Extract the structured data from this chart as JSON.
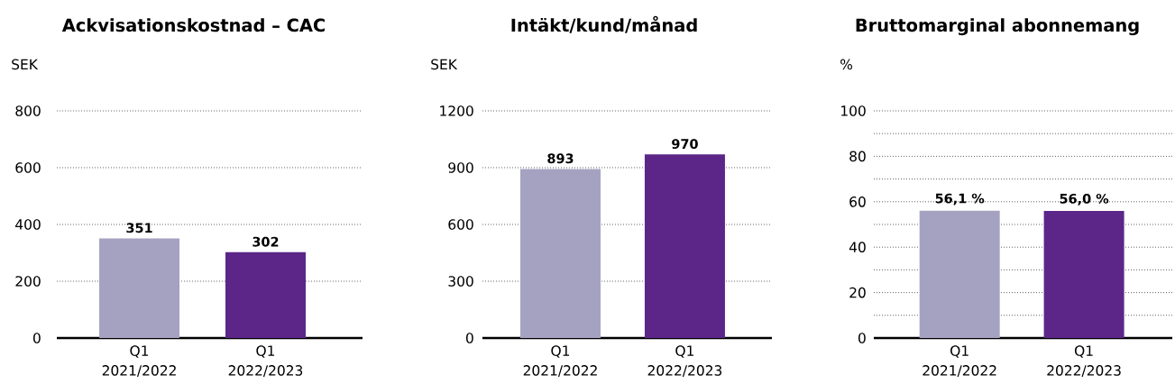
{
  "chart_data": [
    {
      "type": "bar",
      "title": "Ackvisationskostnad – CAC",
      "ylabel": "SEK",
      "categories": [
        "Q1 2021/2022",
        "Q1 2022/2023"
      ],
      "values": [
        351,
        302
      ],
      "colors": [
        "#a5a2c1",
        "#5c2689"
      ],
      "ylim": [
        0,
        800
      ],
      "yticks": [
        0,
        200,
        400,
        600,
        800
      ],
      "grid": "y",
      "data_labels": true
    },
    {
      "type": "bar",
      "title": "Intäkt/kund/månad",
      "ylabel": "SEK",
      "categories": [
        "Q1 2021/2022",
        "Q1 2022/2023"
      ],
      "values": [
        893,
        970
      ],
      "colors": [
        "#a5a2c1",
        "#5c2689"
      ],
      "ylim": [
        0,
        1200
      ],
      "yticks": [
        0,
        300,
        600,
        900,
        1200
      ],
      "grid": "y",
      "data_labels": true
    },
    {
      "type": "bar",
      "title": "Bruttomarginal abonnemang",
      "ylabel": "%",
      "categories": [
        "Q1 2021/2022",
        "Q1 2022/2023"
      ],
      "values": [
        56.1,
        56.0
      ],
      "value_labels": [
        "56,1 %",
        "56,0 %"
      ],
      "colors": [
        "#a5a2c1",
        "#5c2689"
      ],
      "ylim": [
        0,
        100
      ],
      "yticks": [
        0,
        {
          "value": 10,
          "label": null
        },
        20,
        {
          "value": 30,
          "label": null
        },
        40,
        {
          "value": 50,
          "label": null
        },
        60,
        {
          "value": 70,
          "label": null
        },
        80,
        {
          "value": 90,
          "label": null
        },
        100
      ],
      "grid": "y"
    }
  ]
}
